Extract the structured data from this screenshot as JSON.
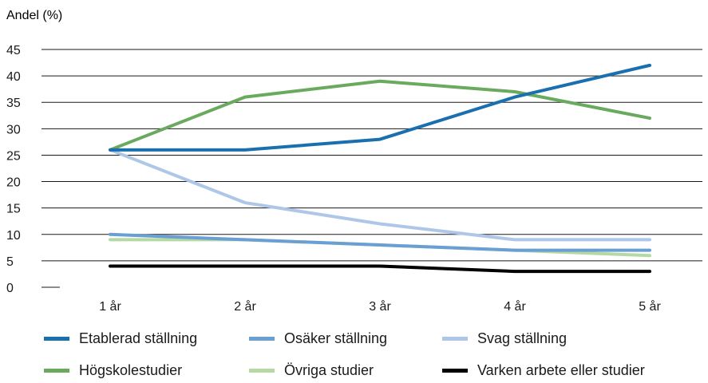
{
  "chart_data": {
    "type": "line",
    "ylabel": "Andel (%)",
    "categories": [
      "1 år",
      "2 år",
      "3 år",
      "4 år",
      "5 år"
    ],
    "ylim": [
      0,
      45
    ],
    "yticks": [
      0,
      5,
      10,
      15,
      20,
      25,
      30,
      35,
      40,
      45
    ],
    "grid": true,
    "legend_position": "bottom",
    "series": [
      {
        "name": "Etablerad ställning",
        "color": "#1a6faf",
        "values": [
          26,
          26,
          28,
          36,
          42
        ]
      },
      {
        "name": "Osäker ställning",
        "color": "#6a9fd4",
        "values": [
          10,
          9,
          8,
          7,
          7
        ]
      },
      {
        "name": "Svag ställning",
        "color": "#aec7e8",
        "values": [
          26,
          16,
          12,
          9,
          9
        ]
      },
      {
        "name": "Högskolestudier",
        "color": "#6aaa5e",
        "values": [
          26,
          36,
          39,
          37,
          32
        ]
      },
      {
        "name": "Övriga studier",
        "color": "#b5d9a3",
        "values": [
          9,
          9,
          8,
          7,
          6
        ]
      },
      {
        "name": "Varken arbete eller studier",
        "color": "#000000",
        "values": [
          4,
          4,
          4,
          3,
          3
        ]
      }
    ]
  }
}
